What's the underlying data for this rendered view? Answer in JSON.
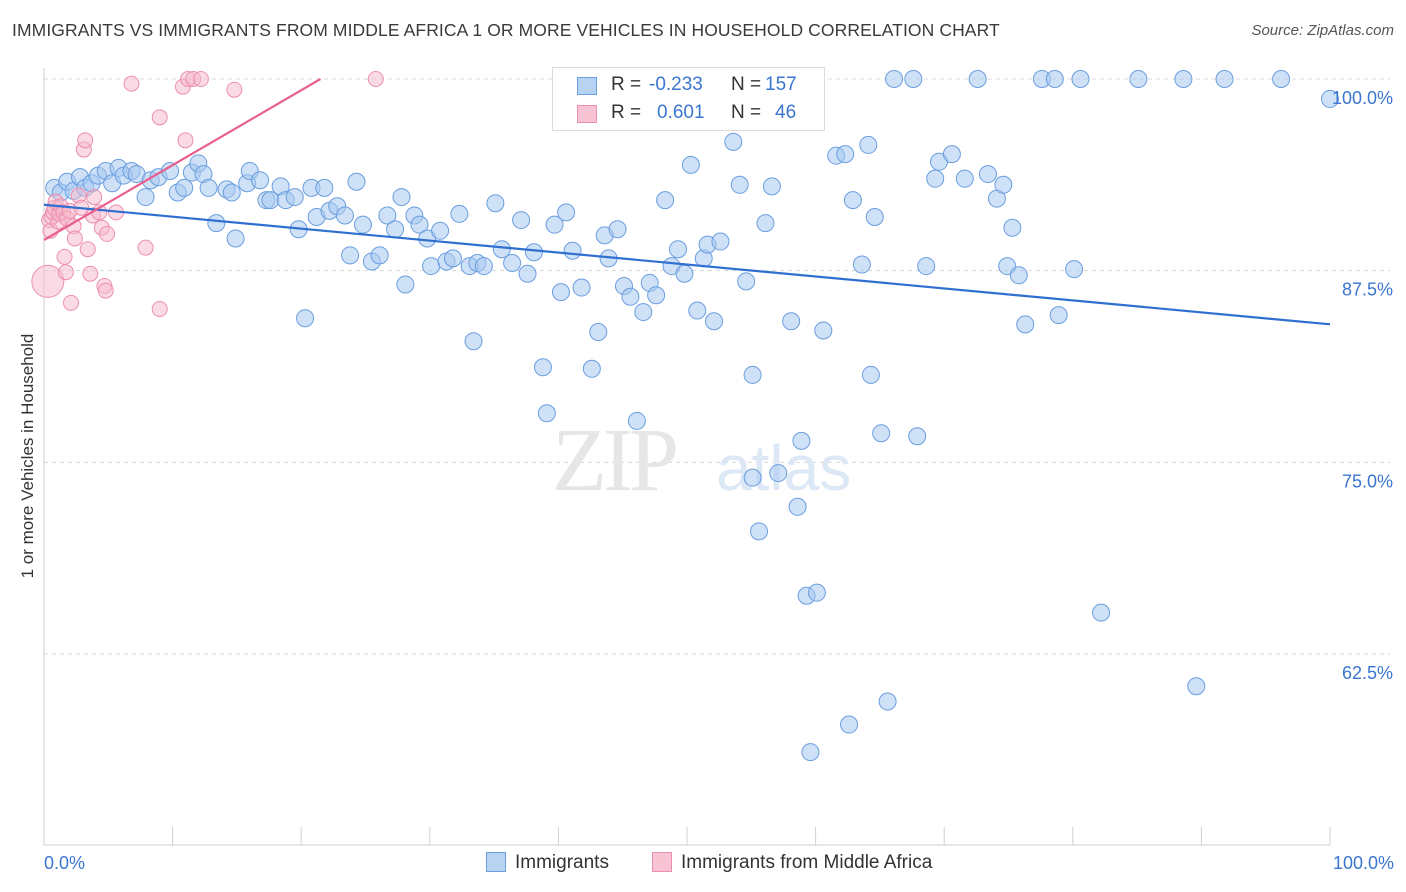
{
  "title": "IMMIGRANTS VS IMMIGRANTS FROM MIDDLE AFRICA 1 OR MORE VEHICLES IN HOUSEHOLD CORRELATION CHART",
  "source": "Source: ZipAtlas.com",
  "watermark": {
    "zip": "ZIP",
    "atlas": "atlas"
  },
  "legend": {
    "rows": [
      {
        "r_label": "R =",
        "r_value": "-0.233",
        "n_label": "N =",
        "n_value": "157"
      },
      {
        "r_label": "R =",
        "r_value": "0.601",
        "n_label": "N =",
        "n_value": "46"
      }
    ]
  },
  "bottom_legend": {
    "s1": "Immigrants",
    "s2": "Immigrants from Middle Africa"
  },
  "colors": {
    "blue_fill": "#a8c8f0",
    "blue_stroke": "#6a9ee0",
    "blue_line": "#2f6fd0",
    "pink_fill": "#f6b8cc",
    "pink_stroke": "#ec8fae",
    "pink_line": "#e8608e",
    "tick_label": "#3a76d0",
    "grid": "#d8d8d8"
  },
  "chart_data": {
    "type": "scatter",
    "title": "IMMIGRANTS VS IMMIGRANTS FROM MIDDLE AFRICA 1 OR MORE VEHICLES IN HOUSEHOLD CORRELATION CHART",
    "xlabel": "",
    "ylabel": "1 or more Vehicles in Household",
    "xlim": [
      0,
      100
    ],
    "ylim": [
      49.5,
      100.5
    ],
    "x_tick_labels": [
      "0.0%",
      "100.0%"
    ],
    "y_ticks": [
      62.5,
      75.0,
      87.5,
      100.0
    ],
    "y_tick_labels": [
      "62.5%",
      "75.0%",
      "87.5%",
      "100.0%"
    ],
    "grid": true,
    "series": [
      {
        "name": "Immigrants",
        "color": "#a8c8f0",
        "trend": [
          [
            0,
            91.8
          ],
          [
            100,
            84.0
          ]
        ],
        "points": [
          [
            0.8,
            92.9
          ],
          [
            1.3,
            92.6
          ],
          [
            1.8,
            93.3
          ],
          [
            2.3,
            92.7
          ],
          [
            2.8,
            93.6
          ],
          [
            3.2,
            92.9
          ],
          [
            3.7,
            93.2
          ],
          [
            4.2,
            93.7
          ],
          [
            4.8,
            94.0
          ],
          [
            5.3,
            93.2
          ],
          [
            5.8,
            94.2
          ],
          [
            6.2,
            93.7
          ],
          [
            6.8,
            94.0
          ],
          [
            7.2,
            93.8
          ],
          [
            7.9,
            92.3
          ],
          [
            8.3,
            93.4
          ],
          [
            8.9,
            93.6
          ],
          [
            9.8,
            94.0
          ],
          [
            10.4,
            92.6
          ],
          [
            10.9,
            92.9
          ],
          [
            11.5,
            93.9
          ],
          [
            12.0,
            94.5
          ],
          [
            12.4,
            93.8
          ],
          [
            12.8,
            92.9
          ],
          [
            13.4,
            90.6
          ],
          [
            14.2,
            92.8
          ],
          [
            14.6,
            92.6
          ],
          [
            14.9,
            89.6
          ],
          [
            15.8,
            93.2
          ],
          [
            16.0,
            94.0
          ],
          [
            16.8,
            93.4
          ],
          [
            17.3,
            92.1
          ],
          [
            17.6,
            92.1
          ],
          [
            18.4,
            93.0
          ],
          [
            18.8,
            92.1
          ],
          [
            19.5,
            92.3
          ],
          [
            19.8,
            90.2
          ],
          [
            20.3,
            84.4
          ],
          [
            20.8,
            92.9
          ],
          [
            21.2,
            91.0
          ],
          [
            21.8,
            92.9
          ],
          [
            22.2,
            91.4
          ],
          [
            22.8,
            91.7
          ],
          [
            23.4,
            91.1
          ],
          [
            24.3,
            93.3
          ],
          [
            24.8,
            90.5
          ],
          [
            23.8,
            88.5
          ],
          [
            25.5,
            88.1
          ],
          [
            26.1,
            88.5
          ],
          [
            26.7,
            91.1
          ],
          [
            27.3,
            90.2
          ],
          [
            27.8,
            92.3
          ],
          [
            28.1,
            86.6
          ],
          [
            28.8,
            91.1
          ],
          [
            29.2,
            90.5
          ],
          [
            29.8,
            89.6
          ],
          [
            30.1,
            87.8
          ],
          [
            30.8,
            90.1
          ],
          [
            31.3,
            88.1
          ],
          [
            31.8,
            88.3
          ],
          [
            32.3,
            91.2
          ],
          [
            33.1,
            87.8
          ],
          [
            33.7,
            88.0
          ],
          [
            33.4,
            82.9
          ],
          [
            34.2,
            87.8
          ],
          [
            35.1,
            91.9
          ],
          [
            35.6,
            88.9
          ],
          [
            36.4,
            88.0
          ],
          [
            37.1,
            90.8
          ],
          [
            37.6,
            87.3
          ],
          [
            38.1,
            88.7
          ],
          [
            38.8,
            81.2
          ],
          [
            39.1,
            78.2
          ],
          [
            39.7,
            90.5
          ],
          [
            40.6,
            91.3
          ],
          [
            40.2,
            86.1
          ],
          [
            41.1,
            88.8
          ],
          [
            41.8,
            86.4
          ],
          [
            42.6,
            81.1
          ],
          [
            43.1,
            83.5
          ],
          [
            43.6,
            89.8
          ],
          [
            43.9,
            88.3
          ],
          [
            44.6,
            90.2
          ],
          [
            45.1,
            86.5
          ],
          [
            45.6,
            85.8
          ],
          [
            46.1,
            77.7
          ],
          [
            46.6,
            84.8
          ],
          [
            47.1,
            86.7
          ],
          [
            47.6,
            85.9
          ],
          [
            48.3,
            92.1
          ],
          [
            48.8,
            87.8
          ],
          [
            49.3,
            88.9
          ],
          [
            49.8,
            87.3
          ],
          [
            50.3,
            94.4
          ],
          [
            50.8,
            84.9
          ],
          [
            51.3,
            88.3
          ],
          [
            51.6,
            89.2
          ],
          [
            52.1,
            84.2
          ],
          [
            52.6,
            89.4
          ],
          [
            53.6,
            95.9
          ],
          [
            54.1,
            93.1
          ],
          [
            54.6,
            86.8
          ],
          [
            55.1,
            80.7
          ],
          [
            55.1,
            74.0
          ],
          [
            55.6,
            70.5
          ],
          [
            56.1,
            90.6
          ],
          [
            56.6,
            93.0
          ],
          [
            57.1,
            74.3
          ],
          [
            58.1,
            84.2
          ],
          [
            58.6,
            72.1
          ],
          [
            58.9,
            76.4
          ],
          [
            59.3,
            66.3
          ],
          [
            59.6,
            56.1
          ],
          [
            60.1,
            66.5
          ],
          [
            60.6,
            83.6
          ],
          [
            61.6,
            95.0
          ],
          [
            62.3,
            95.1
          ],
          [
            62.6,
            57.9
          ],
          [
            62.9,
            92.1
          ],
          [
            63.6,
            87.9
          ],
          [
            64.1,
            95.7
          ],
          [
            64.3,
            80.7
          ],
          [
            64.6,
            91.0
          ],
          [
            65.1,
            76.9
          ],
          [
            65.6,
            59.4
          ],
          [
            66.1,
            100.0
          ],
          [
            67.6,
            100.0
          ],
          [
            67.9,
            76.7
          ],
          [
            68.6,
            87.8
          ],
          [
            69.3,
            93.5
          ],
          [
            69.6,
            94.6
          ],
          [
            70.6,
            95.1
          ],
          [
            71.6,
            93.5
          ],
          [
            72.6,
            100.0
          ],
          [
            73.4,
            93.8
          ],
          [
            74.1,
            92.2
          ],
          [
            74.6,
            93.1
          ],
          [
            74.9,
            87.8
          ],
          [
            75.3,
            90.3
          ],
          [
            75.8,
            87.2
          ],
          [
            76.3,
            84.0
          ],
          [
            77.6,
            100.0
          ],
          [
            78.6,
            100.0
          ],
          [
            78.9,
            84.6
          ],
          [
            80.1,
            87.6
          ],
          [
            80.6,
            100.0
          ],
          [
            82.2,
            65.2
          ],
          [
            85.1,
            100.0
          ],
          [
            88.6,
            100.0
          ],
          [
            89.6,
            60.4
          ],
          [
            91.8,
            100.0
          ],
          [
            96.2,
            100.0
          ],
          [
            100.0,
            98.7
          ]
        ]
      },
      {
        "name": "Immigrants from Middle Africa",
        "color": "#f6b8cc",
        "trend": [
          [
            0,
            89.5
          ],
          [
            21.5,
            100.0
          ]
        ],
        "points": [
          [
            0.3,
            86.8
          ],
          [
            0.4,
            90.8
          ],
          [
            0.5,
            90.1
          ],
          [
            0.6,
            91.0
          ],
          [
            0.7,
            91.3
          ],
          [
            0.8,
            91.6
          ],
          [
            0.9,
            92.0
          ],
          [
            1.1,
            90.7
          ],
          [
            1.2,
            91.2
          ],
          [
            1.3,
            91.7
          ],
          [
            1.5,
            91.3
          ],
          [
            1.6,
            88.4
          ],
          [
            1.7,
            87.4
          ],
          [
            1.8,
            90.9
          ],
          [
            2.0,
            91.4
          ],
          [
            2.1,
            85.4
          ],
          [
            2.3,
            90.4
          ],
          [
            2.4,
            89.6
          ],
          [
            2.7,
            92.4
          ],
          [
            2.9,
            91.6
          ],
          [
            3.1,
            95.4
          ],
          [
            3.2,
            96.0
          ],
          [
            3.4,
            88.9
          ],
          [
            3.6,
            87.3
          ],
          [
            3.8,
            91.1
          ],
          [
            3.9,
            92.3
          ],
          [
            4.3,
            91.3
          ],
          [
            4.5,
            90.3
          ],
          [
            4.7,
            86.5
          ],
          [
            4.8,
            86.2
          ],
          [
            4.9,
            89.9
          ],
          [
            5.6,
            91.3
          ],
          [
            6.8,
            99.7
          ],
          [
            7.9,
            89.0
          ],
          [
            9.0,
            97.5
          ],
          [
            9.0,
            85.0
          ],
          [
            10.8,
            99.5
          ],
          [
            11.0,
            96.0
          ],
          [
            11.2,
            100.0
          ],
          [
            11.6,
            100.0
          ],
          [
            12.2,
            100.0
          ],
          [
            14.8,
            99.3
          ],
          [
            25.8,
            100.0
          ]
        ]
      }
    ]
  }
}
